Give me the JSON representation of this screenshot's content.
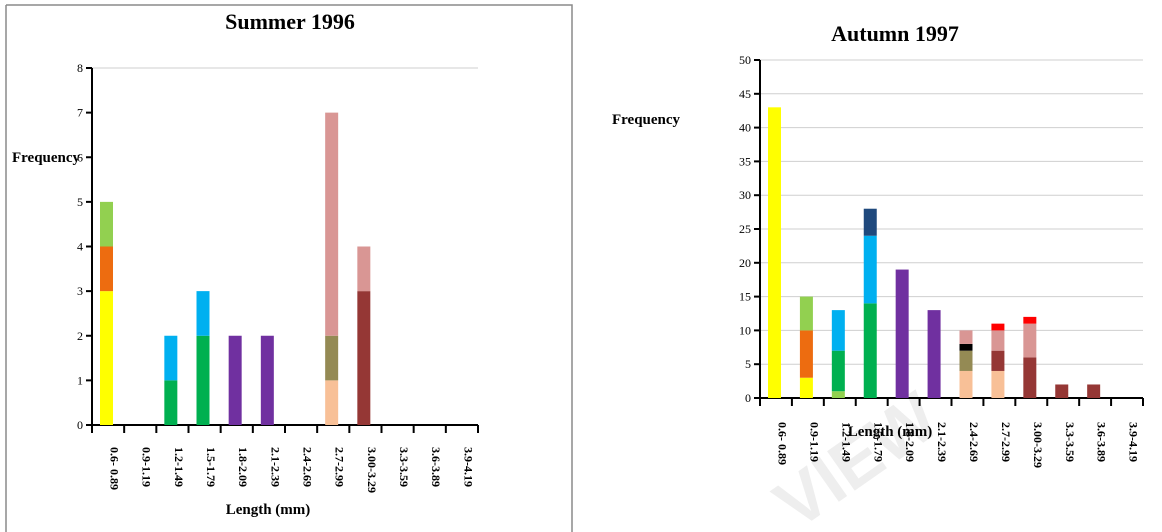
{
  "watermark": "VIEW",
  "colors": {
    "c1": "#ffff00",
    "c2": "#ed6c10",
    "c3": "#92d050",
    "c4": "#00b050",
    "c5": "#00b0f0",
    "c6": "#7030a0",
    "c7": "#f8c097",
    "c8": "#948a54",
    "c9": "#d99694",
    "c10": "#953735",
    "c11": "#000000",
    "c12": "#ff0000",
    "c13": "#1f497d"
  },
  "chart_data": [
    {
      "type": "bar",
      "stacked": true,
      "title": "Summer 1996",
      "xlabel": "Length (mm)",
      "ylabel": "Frequency",
      "ylim": [
        0,
        8
      ],
      "yticks": [
        0,
        1,
        2,
        3,
        4,
        5,
        6,
        7,
        8
      ],
      "grid": false,
      "categories": [
        "0.6- 0.89",
        "0.9-1.19",
        "1.2-1.49",
        "1.5-1.79",
        "1.8-2.09",
        "2.1-2.39",
        "2.4-2.69",
        "2.7-2.99",
        "3.00-3.29",
        "3.3-3.59",
        "3.6-3.89",
        "3.9-4.19"
      ],
      "stacks": [
        [
          {
            "value": 3,
            "color": "c1"
          },
          {
            "value": 1,
            "color": "c2"
          },
          {
            "value": 1,
            "color": "c3"
          }
        ],
        [],
        [
          {
            "value": 1,
            "color": "c4"
          },
          {
            "value": 1,
            "color": "c5"
          }
        ],
        [
          {
            "value": 2,
            "color": "c4"
          },
          {
            "value": 1,
            "color": "c5"
          }
        ],
        [
          {
            "value": 2,
            "color": "c6"
          }
        ],
        [
          {
            "value": 2,
            "color": "c6"
          }
        ],
        [],
        [
          {
            "value": 1,
            "color": "c7"
          },
          {
            "value": 1,
            "color": "c8"
          },
          {
            "value": 5,
            "color": "c9"
          }
        ],
        [
          {
            "value": 3,
            "color": "c10"
          },
          {
            "value": 1,
            "color": "c9"
          }
        ],
        [],
        [],
        []
      ]
    },
    {
      "type": "bar",
      "stacked": true,
      "title": "Autumn 1997",
      "xlabel": "Length (mm)",
      "ylabel": "Frequency",
      "ylim": [
        0,
        50
      ],
      "yticks": [
        0,
        5,
        10,
        15,
        20,
        25,
        30,
        35,
        40,
        45,
        50
      ],
      "grid": true,
      "categories": [
        "0.6- 0.89",
        "0.9-1.19",
        "1.2-1.49",
        "1.5-1.79",
        "1.8-2.09",
        "2.1-2.39",
        "2.4-2.69",
        "2.7-2.99",
        "3.00-3.29",
        "3.3-3.59",
        "3.6-3.89",
        "3.9-4.19"
      ],
      "stacks": [
        [
          {
            "value": 43,
            "color": "c1"
          }
        ],
        [
          {
            "value": 3,
            "color": "c1"
          },
          {
            "value": 7,
            "color": "c2"
          },
          {
            "value": 5,
            "color": "c3"
          }
        ],
        [
          {
            "value": 1,
            "color": "c3"
          },
          {
            "value": 6,
            "color": "c4"
          },
          {
            "value": 6,
            "color": "c5"
          }
        ],
        [
          {
            "value": 14,
            "color": "c4"
          },
          {
            "value": 10,
            "color": "c5"
          },
          {
            "value": 4,
            "color": "c13"
          }
        ],
        [
          {
            "value": 19,
            "color": "c6"
          }
        ],
        [
          {
            "value": 13,
            "color": "c6"
          }
        ],
        [
          {
            "value": 4,
            "color": "c7"
          },
          {
            "value": 3,
            "color": "c8"
          },
          {
            "value": 1,
            "color": "c11"
          },
          {
            "value": 2,
            "color": "c9"
          }
        ],
        [
          {
            "value": 4,
            "color": "c7"
          },
          {
            "value": 3,
            "color": "c10"
          },
          {
            "value": 3,
            "color": "c9"
          },
          {
            "value": 1,
            "color": "c12"
          }
        ],
        [
          {
            "value": 6,
            "color": "c10"
          },
          {
            "value": 5,
            "color": "c9"
          },
          {
            "value": 1,
            "color": "c12"
          }
        ],
        [
          {
            "value": 2,
            "color": "c10"
          }
        ],
        [
          {
            "value": 2,
            "color": "c10"
          }
        ],
        []
      ]
    }
  ]
}
